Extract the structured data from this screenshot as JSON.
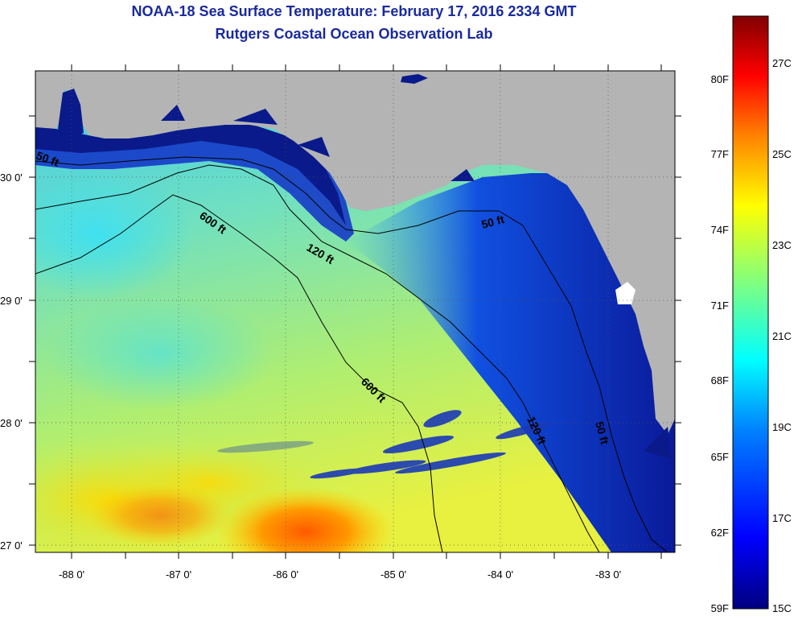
{
  "title": "NOAA-18 Sea Surface Temperature:  February 17, 2016 2334 GMT",
  "subtitle": "Rutgers Coastal Ocean Observation Lab",
  "lat_labels": [
    "30 0'",
    "29 0'",
    "28 0'",
    "27 0'"
  ],
  "lon_labels": [
    "-88 0'",
    "-87 0'",
    "-86 0'",
    "-85 0'",
    "-84 0'",
    "-83 0'"
  ],
  "contours": [
    "50 ft",
    "600 ft",
    "120 ft",
    "50 ft",
    "600 ft",
    "120 ft",
    "50 ft"
  ],
  "colorbar": {
    "fahrenheit": [
      "80F",
      "77F",
      "74F",
      "71F",
      "68F",
      "65F",
      "62F",
      "59F"
    ],
    "celsius": [
      "27C",
      "25C",
      "23C",
      "21C",
      "19C",
      "17C",
      "15C"
    ],
    "colors": [
      "#00007f",
      "#0000ff",
      "#0080ff",
      "#00ffff",
      "#80ff80",
      "#ffff00",
      "#ff8000",
      "#ff0000",
      "#800000"
    ]
  },
  "colors": {
    "land": "#b4b4b4",
    "title": "#1a2a9c",
    "coast_water": "#0a1a8a"
  }
}
